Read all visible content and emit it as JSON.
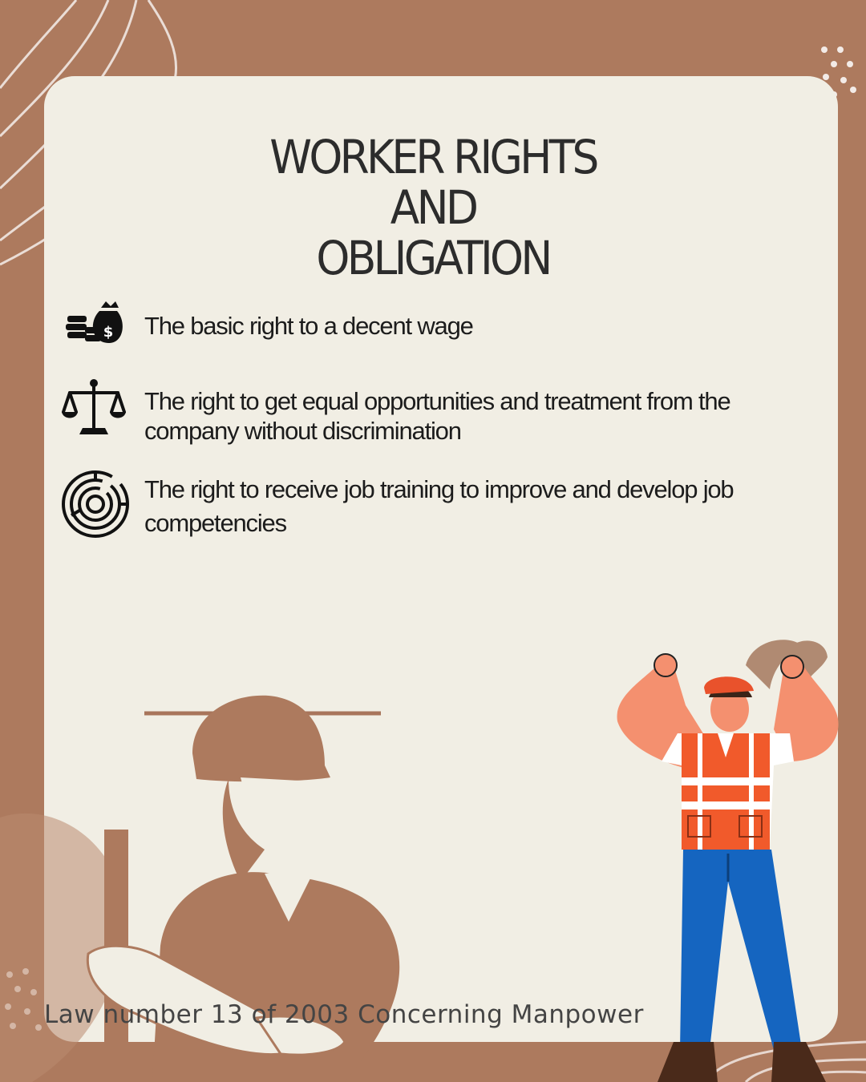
{
  "title": {
    "line1": "WORKER RIGHTS",
    "line2": "AND",
    "line3": "OBLIGATION"
  },
  "rights": [
    {
      "icon": "money-bag-icon",
      "text": "The basic right to a decent wage"
    },
    {
      "icon": "justice-scale-icon",
      "text": "The right to get equal opportunities and treatment from the company without discrimination"
    },
    {
      "icon": "maze-icon",
      "text": "The right to receive job training to improve and develop job competencies"
    }
  ],
  "footer": "Law number 13 of 2003 Concerning Manpower",
  "colors": {
    "background": "#ad7a5e",
    "card": "#f1eee4",
    "text": "#1c1c1c",
    "vest": "#f15a2b",
    "jeans": "#1565c0"
  }
}
